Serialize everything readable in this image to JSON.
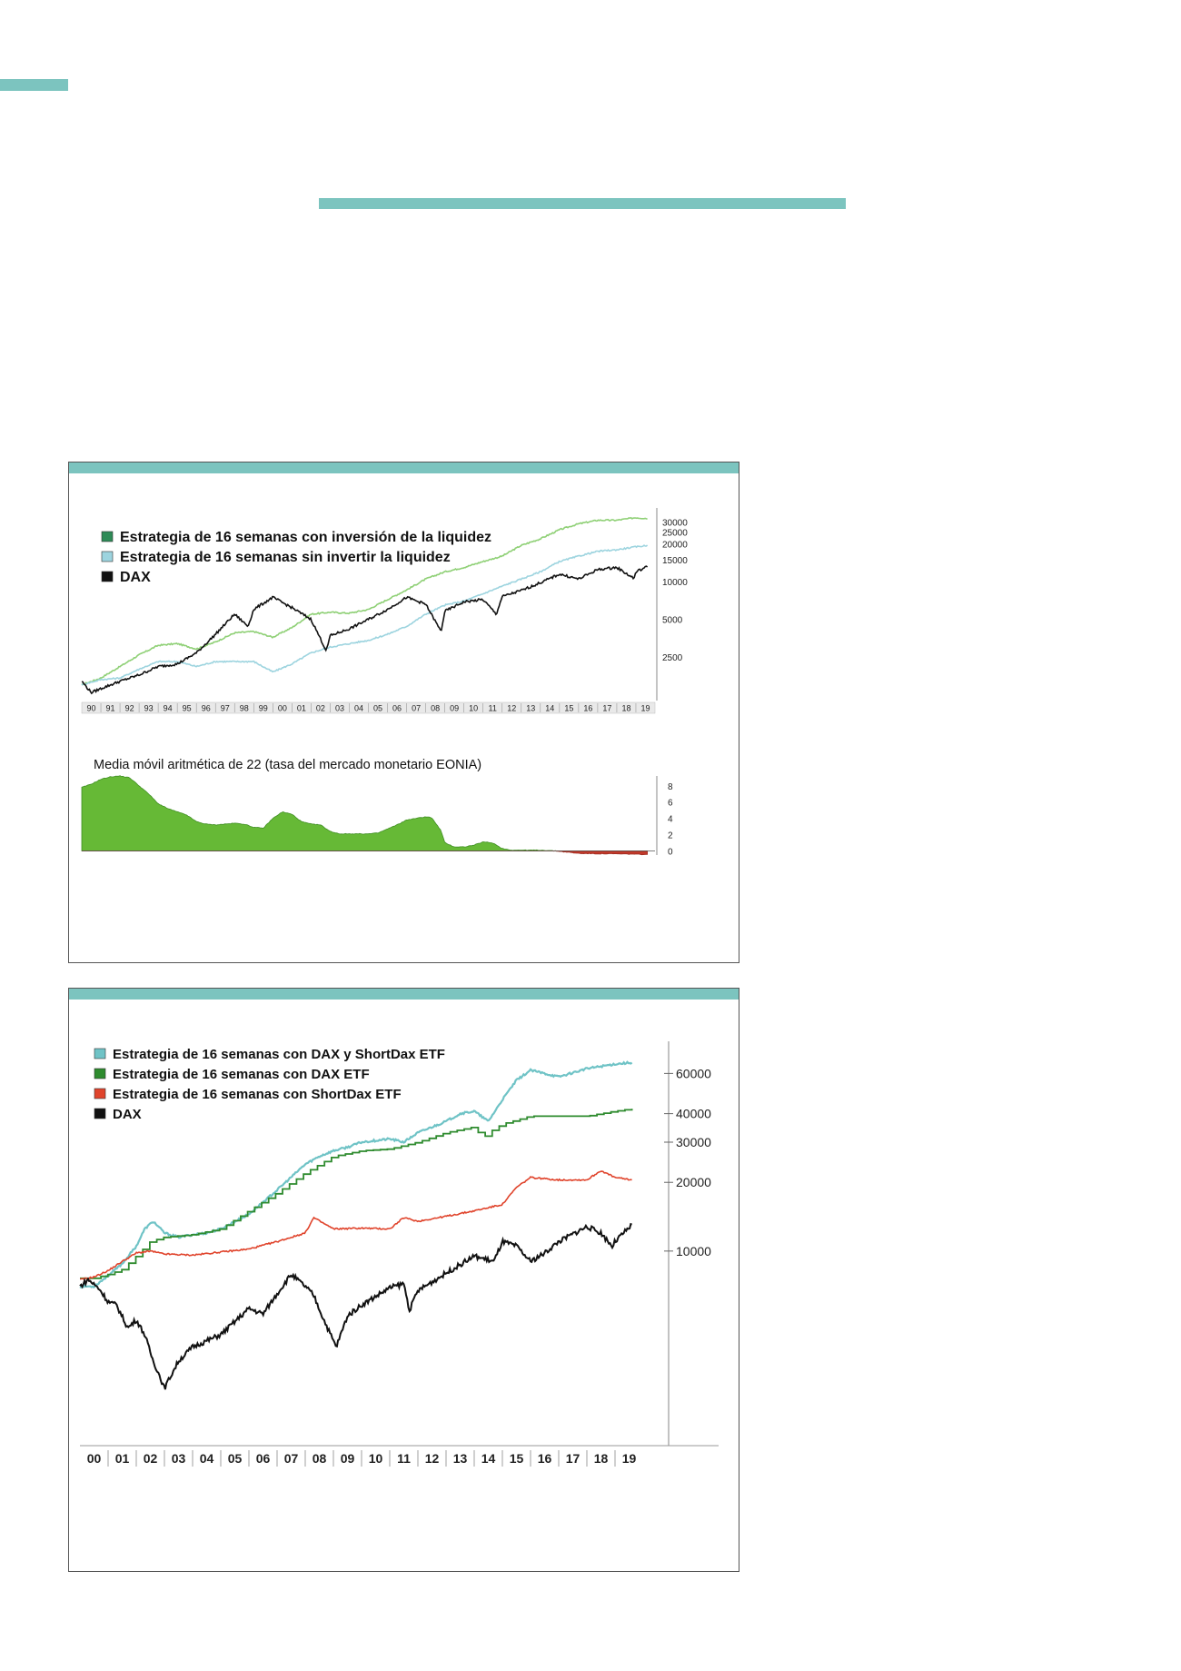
{
  "colors": {
    "teal_bar": "#7cc4bf",
    "light_green": "#8fd076",
    "light_blue": "#9dd4df",
    "dax_black": "#111111",
    "fill_green": "#66b936",
    "fill_red": "#c0392b",
    "cyan": "#6fc3c6",
    "dark_green": "#2e8b2e",
    "red": "#e0442c"
  },
  "chart_data": [
    {
      "type": "line",
      "scale": "log",
      "legend": [
        {
          "label": "Estrategia de 16 semanas con inversión de la liquidez",
          "color": "#2e8b57"
        },
        {
          "label": "Estrategia de 16 semanas sin invertir la liquidez",
          "color": "#9dd4df"
        },
        {
          "label": "DAX",
          "color": "#111111"
        }
      ],
      "legend_position": "top-left",
      "x_ticks": [
        "90",
        "91",
        "92",
        "93",
        "94",
        "95",
        "96",
        "97",
        "98",
        "99",
        "00",
        "01",
        "02",
        "03",
        "04",
        "05",
        "06",
        "07",
        "08",
        "09",
        "10",
        "11",
        "12",
        "13",
        "14",
        "15",
        "16",
        "17",
        "18",
        "19"
      ],
      "y_ticks": [
        30000,
        25000,
        20000,
        15000,
        10000,
        5000,
        2500
      ],
      "ylim": [
        1200,
        34000
      ],
      "x_range": [
        1990,
        2020
      ],
      "series": [
        {
          "name": "Estrategia de 16 semanas con inversión de la liquidez",
          "x": [
            1990,
            1991,
            1992,
            1993,
            1994,
            1995,
            1996,
            1997,
            1998,
            1999,
            2000,
            2001,
            2002,
            2003,
            2004,
            2005,
            2006,
            2007,
            2008,
            2009,
            2010,
            2011,
            2012,
            2013,
            2014,
            2015,
            2016,
            2017,
            2018,
            2019,
            2019.6
          ],
          "y": [
            1500,
            1700,
            2100,
            2600,
            3100,
            3200,
            2900,
            3300,
            3900,
            4000,
            3600,
            4300,
            5500,
            5700,
            5600,
            6000,
            7200,
            8600,
            10500,
            12000,
            13000,
            14500,
            16000,
            19500,
            22000,
            26000,
            29000,
            31000,
            31000,
            32500,
            32000
          ]
        },
        {
          "name": "Estrategia de 16 semanas sin invertir la liquidez",
          "x": [
            1990,
            1991,
            1992,
            1993,
            1994,
            1995,
            1996,
            1997,
            1998,
            1999,
            2000,
            2001,
            2002,
            2003,
            2004,
            2005,
            2006,
            2007,
            2008,
            2009,
            2010,
            2011,
            2012,
            2013,
            2014,
            2015,
            2016,
            2017,
            2018,
            2019,
            2019.6
          ],
          "y": [
            1500,
            1650,
            1700,
            2000,
            2300,
            2300,
            2100,
            2300,
            2300,
            2300,
            1900,
            2200,
            2700,
            3000,
            3200,
            3400,
            3800,
            4400,
            5500,
            6500,
            7000,
            8000,
            9200,
            10500,
            12000,
            14500,
            16000,
            17500,
            18000,
            19000,
            19500
          ]
        },
        {
          "name": "DAX",
          "x": [
            1990,
            1990.5,
            1991,
            1992,
            1993,
            1994,
            1995,
            1996,
            1997,
            1998,
            1998.7,
            1999,
            2000,
            2001,
            2002,
            2002.8,
            2003,
            2004,
            2005,
            2006,
            2007,
            2008,
            2008.8,
            2009,
            2010,
            2011,
            2011.7,
            2012,
            2013,
            2014,
            2015,
            2016,
            2017,
            2018,
            2018.9,
            2019,
            2019.6
          ],
          "y": [
            1600,
            1300,
            1400,
            1600,
            1800,
            2100,
            2200,
            2700,
            3800,
            5500,
            4400,
            6000,
            7500,
            6200,
            5000,
            2800,
            3700,
            4200,
            5000,
            6000,
            7500,
            6600,
            4000,
            5800,
            6900,
            7200,
            5500,
            7600,
            8500,
            9800,
            11500,
            10500,
            12500,
            13000,
            10600,
            12000,
            13200
          ]
        }
      ]
    },
    {
      "type": "area",
      "title": "Media móvil aritmética de 22 (tasa del mercado monetario EONIA)",
      "y_ticks": [
        8,
        6,
        4,
        2,
        0
      ],
      "ylim": [
        -0.5,
        9.2
      ],
      "x_range": [
        1990,
        2020
      ],
      "x": [
        1990,
        1990.5,
        1991,
        1991.5,
        1992,
        1992.5,
        1993,
        1993.5,
        1994,
        1994.5,
        1995,
        1995.5,
        1996,
        1996.5,
        1997,
        1997.5,
        1998,
        1998.5,
        1999,
        1999.5,
        2000,
        2000.5,
        2001,
        2001.5,
        2002,
        2002.5,
        2003,
        2003.5,
        2004,
        2004.5,
        2005,
        2005.5,
        2006,
        2006.5,
        2007,
        2007.5,
        2008,
        2008.3,
        2008.8,
        2009,
        2009.5,
        2010,
        2010.5,
        2011,
        2011.5,
        2012,
        2012.5,
        2013,
        2014,
        2014.5,
        2015,
        2016,
        2017,
        2018,
        2019,
        2019.6
      ],
      "values": [
        7.8,
        8.2,
        8.8,
        9.1,
        9.2,
        9.0,
        8.0,
        7.0,
        5.8,
        5.2,
        4.8,
        4.4,
        3.6,
        3.3,
        3.2,
        3.3,
        3.4,
        3.3,
        2.9,
        2.8,
        4.0,
        4.8,
        4.5,
        3.6,
        3.3,
        3.2,
        2.4,
        2.1,
        2.1,
        2.1,
        2.1,
        2.2,
        2.7,
        3.2,
        3.8,
        4.0,
        4.2,
        4.1,
        2.5,
        1.0,
        0.5,
        0.5,
        0.7,
        1.1,
        1.0,
        0.3,
        0.1,
        0.1,
        0.1,
        0.05,
        -0.05,
        -0.3,
        -0.35,
        -0.36,
        -0.4,
        -0.45
      ]
    },
    {
      "type": "line",
      "scale": "log",
      "legend": [
        {
          "label": "Estrategia de 16 semanas con DAX y ShortDax ETF",
          "color": "#6fc3c6"
        },
        {
          "label": "Estrategia de 16 semanas con DAX ETF",
          "color": "#2e8b2e"
        },
        {
          "label": "Estrategia de 16 semanas con ShortDax ETF",
          "color": "#e0442c"
        },
        {
          "label": "DAX",
          "color": "#111111"
        }
      ],
      "legend_position": "top-left",
      "x_ticks": [
        "00",
        "01",
        "02",
        "03",
        "04",
        "05",
        "06",
        "07",
        "08",
        "09",
        "10",
        "11",
        "12",
        "13",
        "14",
        "15",
        "16",
        "17",
        "18",
        "19"
      ],
      "y_ticks": [
        60000,
        40000,
        30000,
        20000,
        10000
      ],
      "ylim": [
        1900,
        80000
      ],
      "x_range": [
        2000,
        2020
      ],
      "series": [
        {
          "name": "Estrategia de 16 semanas con DAX y ShortDax ETF",
          "x": [
            2000,
            2000.5,
            2001,
            2001.5,
            2002,
            2002.3,
            2002.6,
            2003,
            2003.5,
            2004,
            2004.5,
            2005,
            2006,
            2007,
            2008,
            2008.5,
            2009,
            2009.5,
            2010,
            2011,
            2011.5,
            2012,
            2013,
            2013.5,
            2014,
            2014.5,
            2015,
            2015.5,
            2016,
            2017,
            2018,
            2019,
            2019.6
          ],
          "y": [
            7000,
            7000,
            7800,
            8800,
            10500,
            12500,
            13500,
            12000,
            11500,
            11800,
            12000,
            12500,
            14500,
            18500,
            24000,
            26000,
            27500,
            28500,
            30000,
            31000,
            30000,
            33000,
            37000,
            40000,
            41000,
            37000,
            46000,
            56000,
            62000,
            58000,
            63000,
            66000,
            67000
          ]
        },
        {
          "name": "Estrategia de 16 semanas con DAX ETF",
          "x": [
            2000,
            2000.5,
            2001,
            2001.5,
            2002,
            2002.5,
            2003,
            2004,
            2005,
            2006,
            2007,
            2008,
            2009,
            2010,
            2011,
            2012,
            2013,
            2014,
            2014.3,
            2014.5,
            2015,
            2016,
            2017,
            2018,
            2019,
            2019.6
          ],
          "y": [
            7600,
            7600,
            7900,
            8300,
            9500,
            11000,
            11500,
            11800,
            12500,
            15000,
            18000,
            22000,
            26000,
            27500,
            28000,
            30000,
            33000,
            35000,
            31000,
            33000,
            36000,
            39000,
            39000,
            39000,
            41000,
            42000
          ]
        },
        {
          "name": "Estrategia de 16 semanas con ShortDax ETF",
          "x": [
            2000,
            2000.5,
            2001,
            2001.5,
            2002,
            2002.5,
            2003,
            2004,
            2005,
            2006,
            2007,
            2008,
            2008.3,
            2009,
            2010,
            2011,
            2011.5,
            2012,
            2013,
            2014,
            2015,
            2015.5,
            2016,
            2017,
            2018,
            2018.5,
            2019,
            2019.6
          ],
          "y": [
            7500,
            7700,
            8200,
            9000,
            9800,
            10000,
            9700,
            9600,
            9900,
            10200,
            11000,
            12000,
            14000,
            12500,
            12600,
            12500,
            14000,
            13500,
            14200,
            15000,
            16000,
            19000,
            21000,
            20500,
            20500,
            22500,
            21000,
            20500
          ]
        },
        {
          "name": "DAX",
          "x": [
            2000,
            2000.3,
            2000.7,
            2001,
            2001.3,
            2001.7,
            2002,
            2002.3,
            2002.6,
            2002.8,
            2003.0,
            2003.2,
            2003.5,
            2004,
            2005,
            2006,
            2006.5,
            2007,
            2007.5,
            2008,
            2008.3,
            2008.6,
            2008.9,
            2009.1,
            2009.5,
            2010,
            2011,
            2011.5,
            2011.7,
            2012,
            2013,
            2014,
            2014.7,
            2015,
            2015.5,
            2016,
            2016.5,
            2017,
            2018,
            2018.5,
            2018.9,
            2019,
            2019.6
          ],
          "y": [
            7000,
            7500,
            6800,
            6000,
            5800,
            4600,
            5000,
            4300,
            3300,
            2900,
            2500,
            2800,
            3300,
            3800,
            4300,
            5600,
            5300,
            6500,
            7900,
            7000,
            6400,
            5200,
            4300,
            3800,
            5200,
            5800,
            6900,
            7200,
            5500,
            6700,
            8000,
            9500,
            9000,
            11000,
            10500,
            9000,
            9800,
            11000,
            12800,
            12000,
            10500,
            11000,
            13000
          ]
        }
      ]
    }
  ]
}
